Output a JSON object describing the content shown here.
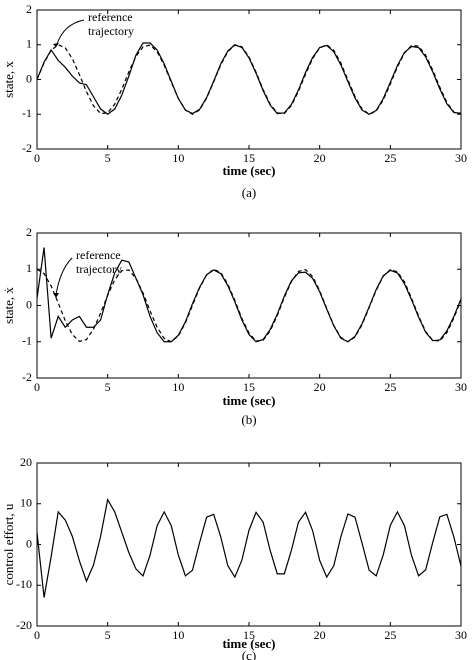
{
  "chart_data": [
    {
      "type": "line",
      "xlabel": "time (sec)",
      "ylabel": "state, x",
      "caption": "(a)",
      "annotation": [
        "reference",
        "trajectory"
      ],
      "xlim": [
        0,
        30
      ],
      "xticks": [
        0,
        5,
        10,
        15,
        20,
        25,
        30
      ],
      "ylim": [
        -2,
        2
      ],
      "yticks": [
        -2,
        -1,
        0,
        1,
        2
      ],
      "grid": false,
      "x": [
        0,
        0.5,
        1,
        1.5,
        2,
        2.5,
        3,
        3.5,
        4,
        4.5,
        5,
        5.5,
        6,
        6.5,
        7,
        7.5,
        8,
        8.5,
        9,
        9.5,
        10,
        10.5,
        11,
        11.5,
        12,
        12.5,
        13,
        13.5,
        14,
        14.5,
        15,
        15.5,
        16,
        16.5,
        17,
        17.5,
        18,
        18.5,
        19,
        19.5,
        20,
        20.5,
        21,
        21.5,
        22,
        22.5,
        23,
        23.5,
        24,
        24.5,
        25,
        25.5,
        26,
        26.5,
        27,
        27.5,
        28,
        28.5,
        29,
        29.5,
        30
      ],
      "series": [
        {
          "color": "#000000",
          "dash": "solid",
          "values": [
            0,
            0.5,
            0.85,
            0.55,
            0.35,
            0.1,
            -0.1,
            -0.15,
            -0.5,
            -0.85,
            -1,
            -0.85,
            -0.45,
            0.1,
            0.7,
            1.05,
            1.05,
            0.85,
            0.45,
            -0.05,
            -0.55,
            -0.88,
            -0.98,
            -0.86,
            -0.52,
            -0.05,
            0.45,
            0.82,
            1,
            0.92,
            0.62,
            0.18,
            -0.32,
            -0.74,
            -0.98,
            -0.96,
            -0.72,
            -0.3,
            0.2,
            0.63,
            0.92,
            0.98,
            0.8,
            0.42,
            -0.06,
            -0.53,
            -0.88,
            -1,
            -0.89,
            -0.55,
            -0.08,
            0.4,
            0.78,
            0.95,
            0.92,
            0.65,
            0.22,
            -0.27,
            -0.7,
            -0.95,
            -0.97
          ]
        },
        {
          "color": "#000000",
          "dash": "dashed",
          "values": [
            0,
            0.48,
            0.84,
            1,
            0.91,
            0.6,
            0.14,
            -0.35,
            -0.76,
            -0.98,
            -0.96,
            -0.71,
            -0.28,
            0.22,
            0.66,
            0.94,
            0.99,
            0.8,
            0.41,
            -0.08,
            -0.54,
            -0.88,
            -1,
            -0.88,
            -0.54,
            -0.07,
            0.42,
            0.8,
            0.99,
            0.94,
            0.65,
            0.21,
            -0.29,
            -0.71,
            -0.96,
            -0.98,
            -0.75,
            -0.34,
            0.15,
            0.6,
            0.91,
            1,
            0.84,
            0.47,
            -0.01,
            -0.49,
            -0.85,
            -1,
            -0.91,
            -0.59,
            -0.13,
            0.36,
            0.76,
            0.98,
            0.96,
            0.7,
            0.27,
            -0.22,
            -0.66,
            -0.94,
            -0.99
          ]
        }
      ]
    },
    {
      "type": "line",
      "xlabel": "time (sec)",
      "ylabel": "state, ẋ",
      "caption": "(b)",
      "annotation": [
        "reference",
        "trajectory"
      ],
      "xlim": [
        0,
        30
      ],
      "xticks": [
        0,
        5,
        10,
        15,
        20,
        25,
        30
      ],
      "ylim": [
        -2,
        2
      ],
      "yticks": [
        -2,
        -1,
        0,
        1,
        2
      ],
      "grid": false,
      "x": [
        0,
        0.5,
        1,
        1.5,
        2,
        2.5,
        3,
        3.5,
        4,
        4.5,
        5,
        5.5,
        6,
        6.5,
        7,
        7.5,
        8,
        8.5,
        9,
        9.5,
        10,
        10.5,
        11,
        11.5,
        12,
        12.5,
        13,
        13.5,
        14,
        14.5,
        15,
        15.5,
        16,
        16.5,
        17,
        17.5,
        18,
        18.5,
        19,
        19.5,
        20,
        20.5,
        21,
        21.5,
        22,
        22.5,
        23,
        23.5,
        24,
        24.5,
        25,
        25.5,
        26,
        26.5,
        27,
        27.5,
        28,
        28.5,
        29,
        29.5,
        30
      ],
      "series": [
        {
          "color": "#000000",
          "dash": "solid",
          "values": [
            0.2,
            1.6,
            -0.9,
            -0.3,
            -0.6,
            -0.4,
            -0.3,
            -0.6,
            -0.6,
            -0.4,
            0.3,
            0.9,
            1.25,
            1.2,
            0.75,
            0.3,
            -0.3,
            -0.75,
            -1,
            -1,
            -0.82,
            -0.45,
            0.05,
            0.5,
            0.85,
            0.98,
            0.88,
            0.55,
            0.1,
            -0.4,
            -0.8,
            -1,
            -0.94,
            -0.66,
            -0.24,
            0.26,
            0.68,
            0.9,
            0.92,
            0.75,
            0.38,
            -0.1,
            -0.56,
            -0.9,
            -1,
            -0.85,
            -0.5,
            -0.04,
            0.44,
            0.82,
            0.97,
            0.9,
            0.6,
            0.16,
            -0.32,
            -0.74,
            -0.97,
            -0.95,
            -0.7,
            -0.3,
            0.18
          ]
        },
        {
          "color": "#000000",
          "dash": "dashed",
          "values": [
            1,
            0.88,
            0.54,
            0.07,
            -0.42,
            -0.8,
            -0.99,
            -0.94,
            -0.65,
            -0.21,
            0.28,
            0.71,
            0.96,
            0.98,
            0.75,
            0.35,
            -0.15,
            -0.6,
            -0.91,
            -1,
            -0.84,
            -0.48,
            0,
            0.48,
            0.84,
            1,
            0.91,
            0.59,
            0.14,
            -0.36,
            -0.76,
            -0.98,
            -0.96,
            -0.7,
            -0.28,
            0.22,
            0.66,
            0.94,
            0.99,
            0.8,
            0.41,
            -0.08,
            -0.55,
            -0.88,
            -1,
            -0.87,
            -0.53,
            -0.06,
            0.42,
            0.81,
            0.99,
            0.93,
            0.65,
            0.2,
            -0.29,
            -0.72,
            -0.96,
            -0.98,
            -0.75,
            -0.34,
            0.15
          ]
        }
      ]
    },
    {
      "type": "line",
      "xlabel": "time (sec)",
      "ylabel": "control effort, u",
      "caption": "(c)",
      "xlim": [
        0,
        30
      ],
      "xticks": [
        0,
        5,
        10,
        15,
        20,
        25,
        30
      ],
      "ylim": [
        -20,
        20
      ],
      "yticks": [
        -20,
        -10,
        0,
        10,
        20
      ],
      "grid": false,
      "x": [
        0,
        0.5,
        1,
        1.5,
        2,
        2.5,
        3,
        3.5,
        4,
        4.5,
        5,
        5.5,
        6,
        6.5,
        7,
        7.5,
        8,
        8.5,
        9,
        9.5,
        10,
        10.5,
        11,
        11.5,
        12,
        12.5,
        13,
        13.5,
        14,
        14.5,
        15,
        15.5,
        16,
        16.5,
        17,
        17.5,
        18,
        18.5,
        19,
        19.5,
        20,
        20.5,
        21,
        21.5,
        22,
        22.5,
        23,
        23.5,
        24,
        24.5,
        25,
        25.5,
        26,
        26.5,
        27,
        27.5,
        28,
        28.5,
        29,
        29.5,
        30
      ],
      "series": [
        {
          "color": "#000000",
          "dash": "solid",
          "values": [
            3,
            -13,
            -3,
            8,
            6,
            2,
            -4,
            -9,
            -5,
            2,
            11,
            8,
            3,
            -2,
            -6,
            -7.7,
            -2.6,
            4.6,
            8,
            4.6,
            -2.6,
            -7.7,
            -6.3,
            0.4,
            6.7,
            7.4,
            1.9,
            -5.2,
            -8,
            -3.8,
            3.5,
            7.9,
            5.5,
            -1.5,
            -7.2,
            -7.2,
            -1.4,
            5.5,
            7.9,
            3.4,
            -3.9,
            -8,
            -5.2,
            1.9,
            7.5,
            6.7,
            0.3,
            -6.3,
            -7.7,
            -2.5,
            4.7,
            8,
            4.6,
            -2.7,
            -7.7,
            -6.2,
            0.5,
            6.8,
            7.4,
            1.8,
            -5.3
          ]
        }
      ]
    }
  ]
}
